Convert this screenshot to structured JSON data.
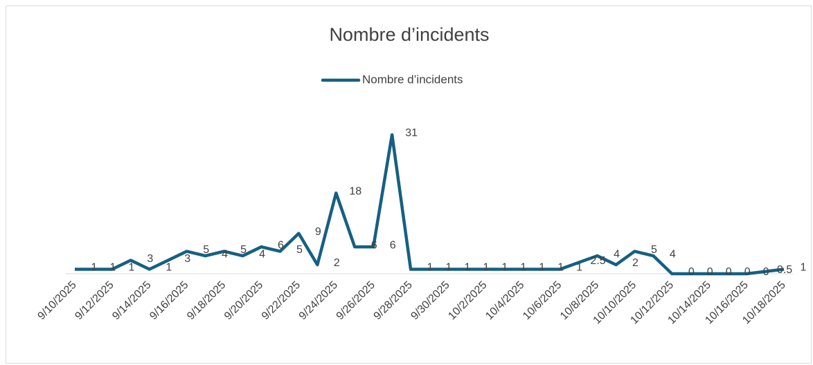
{
  "chart_data": {
    "type": "line",
    "title": "Nombre d’incidents",
    "categories": [
      "9/10/2025",
      null,
      "9/12/2025",
      null,
      "9/14/2025",
      null,
      "9/16/2025",
      null,
      "9/18/2025",
      null,
      "9/20/2025",
      null,
      "9/22/2025",
      null,
      "9/24/2025",
      null,
      "9/26/2025",
      null,
      "9/28/2025",
      null,
      "9/30/2025",
      null,
      "10/2/2025",
      null,
      "10/4/2025",
      null,
      "10/6/2025",
      null,
      "10/8/2025",
      null,
      "10/10/2025",
      null,
      "10/12/2025",
      null,
      "10/14/2025",
      null,
      "10/16/2025",
      null,
      "10/18/2025"
    ],
    "series": [
      {
        "name": "Nombre d’incidents",
        "color": "#156082",
        "values": [
          1,
          1,
          1,
          3,
          1,
          3,
          5,
          4,
          5,
          4,
          6,
          5,
          9,
          2,
          18,
          6,
          6,
          31,
          1,
          1,
          1,
          1,
          1,
          1,
          1,
          1,
          1,
          2.5,
          4,
          2,
          5,
          4,
          0,
          0,
          0,
          0,
          0,
          0.5,
          1
        ]
      }
    ],
    "ylim": [
      0,
      35
    ],
    "legend": "top",
    "grid": false
  }
}
